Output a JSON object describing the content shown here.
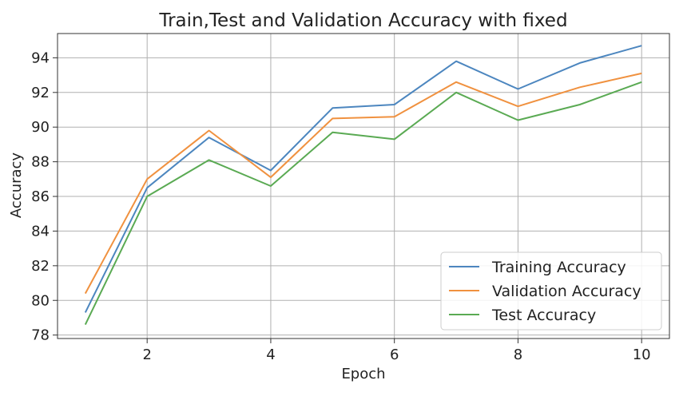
{
  "chart_data": {
    "type": "line",
    "title": "Train,Test and Validation Accuracy with fixed",
    "xlabel": "Epoch",
    "ylabel": "Accuracy",
    "x": [
      1,
      2,
      3,
      4,
      5,
      6,
      7,
      8,
      9,
      10
    ],
    "xlim": [
      0.55,
      10.45
    ],
    "ylim": [
      77.8,
      95.4
    ],
    "xticks": [
      2,
      4,
      6,
      8,
      10
    ],
    "yticks": [
      78,
      80,
      82,
      84,
      86,
      88,
      90,
      92,
      94
    ],
    "grid": true,
    "legend_position": "lower-right",
    "series": [
      {
        "name": "Training Accuracy",
        "color": "#4c86bf",
        "values": [
          79.3,
          86.5,
          89.4,
          87.5,
          91.1,
          91.3,
          93.8,
          92.2,
          93.7,
          94.7
        ]
      },
      {
        "name": "Validation Accuracy",
        "color": "#f0913f",
        "values": [
          80.4,
          87.0,
          89.8,
          87.1,
          90.5,
          90.6,
          92.6,
          91.2,
          92.3,
          93.1
        ]
      },
      {
        "name": "Test Accuracy",
        "color": "#5aaa53",
        "values": [
          78.6,
          86.0,
          88.1,
          86.6,
          89.7,
          89.3,
          92.0,
          90.4,
          91.3,
          92.6
        ]
      }
    ]
  }
}
